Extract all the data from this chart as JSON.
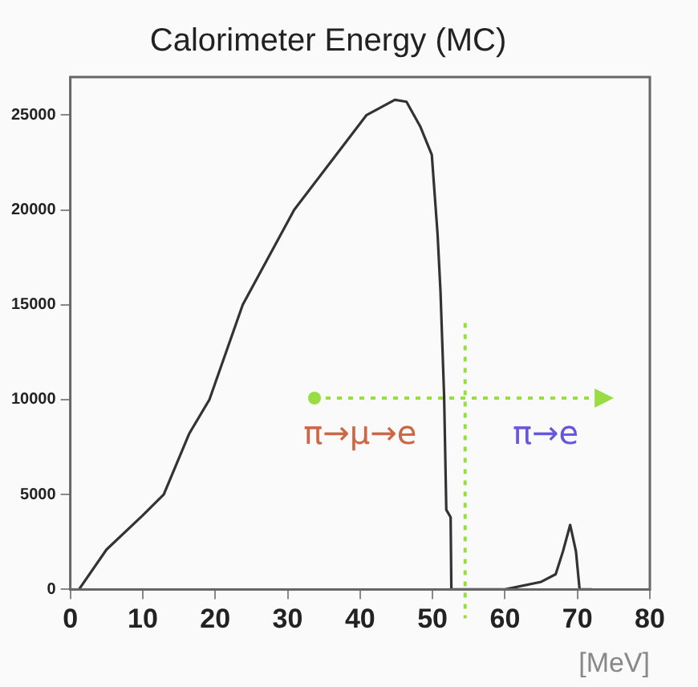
{
  "chart_data": {
    "type": "line",
    "title": "Calorimeter Energy (MC)",
    "xlabel": "[MeV]",
    "x": [
      1.2,
      5,
      10,
      12.9,
      16.4,
      19.2,
      23.8,
      30.9,
      40.9,
      44.8,
      46.4,
      48.3,
      49.9,
      50.3,
      50.7,
      51.1,
      51.6,
      51.9,
      52.5,
      52.6,
      60,
      65,
      67,
      68,
      69,
      69.8,
      70.3,
      72
    ],
    "series": [
      {
        "color": "#333333",
        "values": [
          0,
          2100,
          3900,
          5000,
          8200,
          10000,
          15000,
          20000,
          25000,
          25800,
          25700,
          24400,
          22900,
          20800,
          18700,
          15700,
          10200,
          4200,
          3800,
          0,
          0,
          400,
          800,
          2000,
          3400,
          2000,
          0,
          0
        ]
      }
    ],
    "xlim": [
      0,
      80
    ],
    "xticks": [
      0,
      10,
      20,
      30,
      40,
      50,
      60,
      70,
      80
    ],
    "ylim": [
      0,
      27000
    ],
    "yticks": [
      0,
      5000,
      10000,
      15000,
      20000,
      25000
    ],
    "grid": false,
    "legend": false,
    "marker": "none",
    "line_style": "solid",
    "ref_lines": [
      {
        "axis": "x",
        "value": 54.5,
        "color": "#99dd44",
        "line_style": "dotted"
      }
    ],
    "annotations": [
      "π→μ→e",
      "π→e"
    ]
  }
}
